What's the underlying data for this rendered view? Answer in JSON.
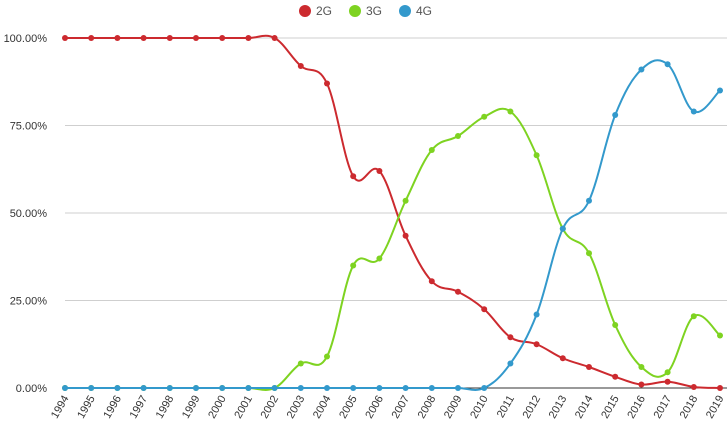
{
  "chart_data": {
    "type": "line",
    "title": "",
    "xlabel": "",
    "ylabel": "",
    "x": [
      "1994",
      "1995",
      "1996",
      "1997",
      "1998",
      "1999",
      "2000",
      "2001",
      "2002",
      "2003",
      "2004",
      "2005",
      "2006",
      "2007",
      "2008",
      "2009",
      "2010",
      "2011",
      "2012",
      "2013",
      "2014",
      "2015",
      "2016",
      "2017",
      "2018",
      "2019"
    ],
    "ylim": [
      0,
      100
    ],
    "yticks": [
      {
        "value": 0,
        "label": "0.00%"
      },
      {
        "value": 25,
        "label": "25.00%"
      },
      {
        "value": 50,
        "label": "50.00%"
      },
      {
        "value": 75,
        "label": "75.00%"
      },
      {
        "value": 100,
        "label": "100.00%"
      }
    ],
    "legend_position": "top",
    "grid": true,
    "series": [
      {
        "name": "2G",
        "color": "#cc2a2f",
        "values": [
          100,
          100,
          100,
          100,
          100,
          100,
          100,
          100,
          100,
          92,
          87,
          60.5,
          62,
          43.5,
          30.5,
          27.5,
          22.5,
          14.5,
          12.5,
          8.5,
          6,
          3.2,
          1,
          1.8,
          0.3,
          0
        ]
      },
      {
        "name": "3G",
        "color": "#7ed321",
        "values": [
          0,
          0,
          0,
          0,
          0,
          0,
          0,
          0,
          0,
          7,
          9,
          35,
          37,
          53.5,
          68,
          72,
          77.5,
          79,
          66.5,
          45.5,
          38.5,
          18,
          6,
          4.5,
          20.5,
          15
        ]
      },
      {
        "name": "4G",
        "color": "#3399cc",
        "values": [
          0,
          0,
          0,
          0,
          0,
          0,
          0,
          0,
          0,
          0,
          0,
          0,
          0,
          0,
          0,
          0,
          0,
          7,
          21,
          45.5,
          53.5,
          78,
          91,
          92.5,
          79,
          85
        ]
      }
    ]
  }
}
